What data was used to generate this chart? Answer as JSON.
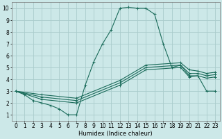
{
  "xlabel": "Humidex (Indice chaleur)",
  "ylabel": "",
  "bg_color": "#cce8e8",
  "grid_color": "#aacccc",
  "line_color": "#1a6b5a",
  "xlim": [
    -0.5,
    23.5
  ],
  "ylim": [
    0.5,
    10.5
  ],
  "xticks": [
    0,
    1,
    2,
    3,
    4,
    5,
    6,
    7,
    8,
    9,
    10,
    11,
    12,
    13,
    14,
    15,
    16,
    17,
    18,
    19,
    20,
    21,
    22,
    23
  ],
  "yticks": [
    1,
    2,
    3,
    4,
    5,
    6,
    7,
    8,
    9,
    10
  ],
  "series": [
    {
      "x": [
        0,
        1,
        2,
        3,
        4,
        5,
        6,
        7,
        8,
        9,
        10,
        11,
        12,
        13,
        14,
        15,
        16,
        17,
        18,
        19,
        20,
        21,
        22,
        23
      ],
      "y": [
        3.0,
        2.7,
        2.2,
        2.0,
        1.8,
        1.5,
        1.0,
        1.0,
        3.5,
        5.5,
        7.0,
        8.2,
        10.0,
        10.1,
        10.0,
        10.0,
        9.5,
        7.0,
        5.0,
        5.2,
        4.3,
        4.3,
        3.0,
        3.0
      ]
    },
    {
      "x": [
        0,
        3,
        7,
        12,
        15,
        19,
        20,
        21,
        22,
        23
      ],
      "y": [
        3.0,
        2.3,
        2.0,
        3.5,
        4.8,
        5.0,
        4.2,
        4.3,
        4.1,
        4.2
      ]
    },
    {
      "x": [
        0,
        3,
        7,
        12,
        15,
        19,
        20,
        21,
        22,
        23
      ],
      "y": [
        3.0,
        2.5,
        2.2,
        3.7,
        5.0,
        5.2,
        4.5,
        4.5,
        4.3,
        4.4
      ]
    },
    {
      "x": [
        0,
        3,
        7,
        12,
        15,
        19,
        20,
        21,
        22,
        23
      ],
      "y": [
        3.0,
        2.7,
        2.4,
        3.9,
        5.2,
        5.4,
        4.8,
        4.7,
        4.5,
        4.6
      ]
    }
  ],
  "marker": "+",
  "markersize": 3,
  "linewidth": 0.8,
  "axis_fontsize": 6,
  "tick_fontsize": 5.5
}
